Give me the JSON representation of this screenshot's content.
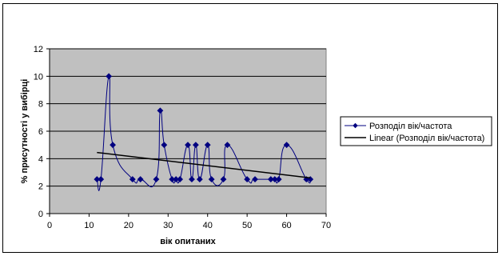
{
  "chart_data": {
    "type": "scatter",
    "title": "",
    "xlabel": "вік опитаних",
    "ylabel": "% присутності у вибірці",
    "xlim": [
      0,
      70
    ],
    "ylim": [
      0,
      12
    ],
    "x_ticks": [
      "0",
      "10",
      "20",
      "30",
      "40",
      "50",
      "60",
      "70"
    ],
    "y_ticks": [
      "0",
      "2",
      "4",
      "6",
      "8",
      "10",
      "12"
    ],
    "grid": "horizontal",
    "plot_area_color": "#c0c0c0",
    "legend_position": "right",
    "series": [
      {
        "name": "Розподіл вік/частота",
        "color": "#000080",
        "marker": "diamond",
        "line": "smooth",
        "x": [
          12,
          13,
          15,
          16,
          21,
          23,
          27,
          28,
          29,
          31,
          32,
          33,
          35,
          36,
          37,
          38,
          40,
          41,
          44,
          45,
          50,
          52,
          56,
          57,
          58,
          60,
          65,
          66
        ],
        "y": [
          2.5,
          2.5,
          10,
          5,
          2.5,
          2.5,
          2.5,
          7.5,
          5,
          2.5,
          2.5,
          2.5,
          5,
          2.5,
          5,
          2.5,
          5,
          2.5,
          2.5,
          5,
          2.5,
          2.5,
          2.5,
          2.5,
          2.5,
          5,
          2.5,
          2.5
        ]
      },
      {
        "name": "Linear (Розподіл вік/частота)",
        "color": "#000000",
        "line": "straight",
        "x": [
          12,
          66
        ],
        "y": [
          4.45,
          2.6
        ]
      }
    ]
  }
}
